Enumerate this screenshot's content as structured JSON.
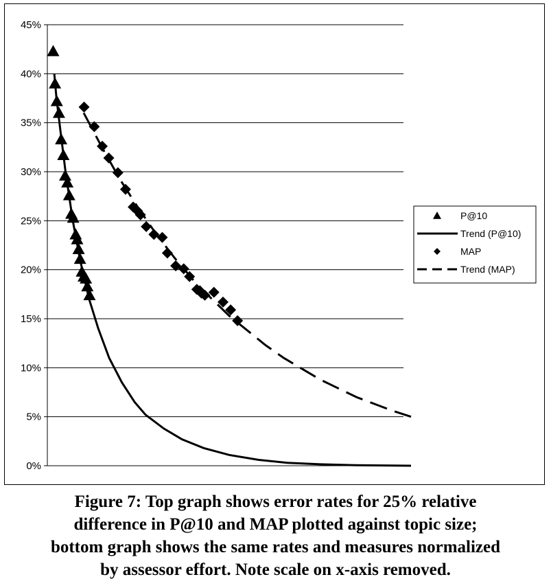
{
  "chart_data": {
    "type": "scatter",
    "title": "",
    "xlabel": "",
    "ylabel": "",
    "ylim": [
      0,
      45
    ],
    "yticks": [
      "0%",
      "5%",
      "10%",
      "15%",
      "20%",
      "25%",
      "30%",
      "35%",
      "40%",
      "45%"
    ],
    "xlim": [
      0,
      100
    ],
    "grid": true,
    "legend_position": "right",
    "series": [
      {
        "name": "P@10",
        "kind": "markers",
        "marker": "triangle",
        "points": [
          [
            1.6,
            42.3
          ],
          [
            2.1,
            39.0
          ],
          [
            2.6,
            37.2
          ],
          [
            3.2,
            36.0
          ],
          [
            3.8,
            33.3
          ],
          [
            4.4,
            31.7
          ],
          [
            4.9,
            29.6
          ],
          [
            5.5,
            28.9
          ],
          [
            6.0,
            27.6
          ],
          [
            6.6,
            25.7
          ],
          [
            7.1,
            25.3
          ],
          [
            7.8,
            23.6
          ],
          [
            8.2,
            23.1
          ],
          [
            8.6,
            22.1
          ],
          [
            9.0,
            21.1
          ],
          [
            9.5,
            19.8
          ],
          [
            10.0,
            19.3
          ],
          [
            10.6,
            19.1
          ],
          [
            11.0,
            18.3
          ],
          [
            11.6,
            17.4
          ]
        ]
      },
      {
        "name": "Trend (P@10)",
        "kind": "line",
        "style": "solid",
        "points": [
          [
            1.9,
            40.0
          ],
          [
            2.5,
            37.5
          ],
          [
            3.5,
            34.5
          ],
          [
            5.0,
            30.0
          ],
          [
            7.0,
            25.0
          ],
          [
            9.0,
            21.0
          ],
          [
            11.5,
            17.0
          ],
          [
            14.0,
            14.0
          ],
          [
            17.0,
            11.0
          ],
          [
            20.5,
            8.5
          ],
          [
            24.0,
            6.5
          ],
          [
            27.0,
            5.2
          ],
          [
            32.0,
            3.8
          ],
          [
            37.0,
            2.7
          ],
          [
            43.0,
            1.8
          ],
          [
            50.0,
            1.1
          ],
          [
            58.0,
            0.6
          ],
          [
            66.0,
            0.3
          ],
          [
            75.0,
            0.15
          ],
          [
            85.0,
            0.05
          ],
          [
            100.0,
            0.0
          ]
        ]
      },
      {
        "name": "MAP",
        "kind": "markers",
        "marker": "diamond",
        "points": [
          [
            10.1,
            36.6
          ],
          [
            12.9,
            34.6
          ],
          [
            15.1,
            32.6
          ],
          [
            16.9,
            31.4
          ],
          [
            19.4,
            29.9
          ],
          [
            21.5,
            28.2
          ],
          [
            23.6,
            26.4
          ],
          [
            24.8,
            26.0
          ],
          [
            25.6,
            25.6
          ],
          [
            27.2,
            24.4
          ],
          [
            29.3,
            23.6
          ],
          [
            31.6,
            23.3
          ],
          [
            33.0,
            21.7
          ],
          [
            35.3,
            20.4
          ],
          [
            37.5,
            20.1
          ],
          [
            39.1,
            19.3
          ],
          [
            41.1,
            18.0
          ],
          [
            42.4,
            17.6
          ],
          [
            43.3,
            17.4
          ],
          [
            45.8,
            17.7
          ],
          [
            48.3,
            16.7
          ],
          [
            50.4,
            15.9
          ],
          [
            52.3,
            14.8
          ]
        ]
      },
      {
        "name": "Trend (MAP)",
        "kind": "line",
        "style": "dashed",
        "points": [
          [
            10.0,
            36.0
          ],
          [
            15.0,
            32.5
          ],
          [
            20.0,
            29.2
          ],
          [
            25.0,
            26.3
          ],
          [
            30.0,
            23.6
          ],
          [
            35.0,
            21.2
          ],
          [
            40.0,
            19.0
          ],
          [
            45.0,
            17.1
          ],
          [
            50.0,
            15.3
          ],
          [
            55.0,
            13.8
          ],
          [
            60.0,
            12.3
          ],
          [
            65.0,
            11.0
          ],
          [
            70.0,
            9.9
          ],
          [
            75.0,
            8.8
          ],
          [
            80.0,
            7.9
          ],
          [
            85.0,
            7.0
          ],
          [
            90.0,
            6.3
          ],
          [
            95.0,
            5.6
          ],
          [
            100.0,
            5.0
          ]
        ]
      }
    ]
  },
  "caption": {
    "line1": "Figure 7: Top graph shows error rates for 25% relative",
    "line2": "difference in P@10 and MAP plotted against topic size;",
    "line3": "bottom graph shows the same rates and measures normalized",
    "line4": "by assessor effort. Note scale on x-axis removed."
  }
}
